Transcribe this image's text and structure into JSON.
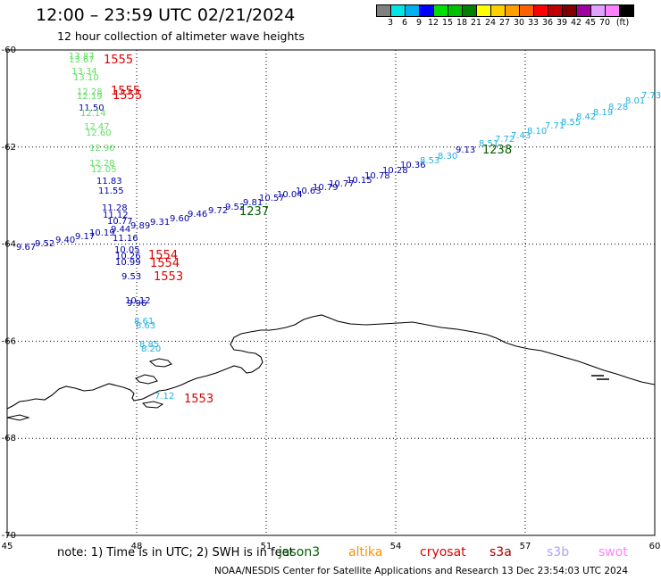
{
  "header": {
    "title": "12:00 – 23:59 UTC 02/21/2024",
    "subtitle": "12 hour collection of altimeter wave heights"
  },
  "legend": {
    "unit": "(ft)",
    "colors": [
      "#808080",
      "#00e6e6",
      "#00b0f0",
      "#0000ff",
      "#00e000",
      "#00c000",
      "#008000",
      "#ffff00",
      "#ffd000",
      "#ffa000",
      "#ff6000",
      "#ff0000",
      "#c00000",
      "#800000",
      "#a000a0",
      "#e0a0ff",
      "#ff80ff",
      "#000000"
    ],
    "labels": [
      "3",
      "6",
      "9",
      "12",
      "15",
      "18",
      "21",
      "24",
      "27",
      "30",
      "33",
      "36",
      "39",
      "42",
      "45",
      "70",
      "(ft)"
    ]
  },
  "map": {
    "x_ticks": [
      "45",
      "48",
      "51",
      "54",
      "57",
      "60"
    ],
    "y_ticks": [
      "-60",
      "-62",
      "-64",
      "-66",
      "-68",
      "-70"
    ],
    "tracks": [
      {
        "id": "track-1",
        "labels": [
          {
            "v": "13.87",
            "c": "#60e060"
          },
          {
            "v": "13.67",
            "c": "#60e060"
          },
          {
            "v": "13.34",
            "c": "#60e060"
          },
          {
            "v": "13.10",
            "c": "#60e060"
          },
          {
            "v": "12.28",
            "c": "#60e060"
          },
          {
            "v": "12.19",
            "c": "#60e060"
          },
          {
            "v": "11.50",
            "c": "#0000aa"
          },
          {
            "v": "12.14",
            "c": "#60e060"
          },
          {
            "v": "12.47",
            "c": "#60e060"
          },
          {
            "v": "12.60",
            "c": "#60e060"
          },
          {
            "v": "12.90",
            "c": "#60e060"
          },
          {
            "v": "12.28",
            "c": "#60e060"
          },
          {
            "v": "12.05",
            "c": "#60e060"
          },
          {
            "v": "11.83",
            "c": "#0000aa"
          },
          {
            "v": "11.55",
            "c": "#0000aa"
          },
          {
            "v": "11.28",
            "c": "#0000aa"
          },
          {
            "v": "11.12",
            "c": "#0000aa"
          },
          {
            "v": "10.77",
            "c": "#0000aa"
          },
          {
            "v": "9.44",
            "c": "#0000aa"
          },
          {
            "v": "11.16",
            "c": "#0000aa"
          },
          {
            "v": "10.05",
            "c": "#0000aa"
          },
          {
            "v": "10.26",
            "c": "#0000aa"
          },
          {
            "v": "10.99",
            "c": "#0000aa"
          },
          {
            "v": "9.53",
            "c": "#0000aa"
          },
          {
            "v": "10.12",
            "c": "#0000aa"
          },
          {
            "v": "9.96",
            "c": "#0000aa"
          },
          {
            "v": "8.61",
            "c": "#20b0e0"
          },
          {
            "v": "8.63",
            "c": "#20b0e0"
          },
          {
            "v": "8.85",
            "c": "#20b0e0"
          },
          {
            "v": "8.20",
            "c": "#20b0e0"
          },
          {
            "v": "7.12",
            "c": "#20b0e0"
          }
        ]
      },
      {
        "id": "track-2",
        "labels": [
          {
            "v": "9.67",
            "c": "#0000aa"
          },
          {
            "v": "9.52",
            "c": "#0000aa"
          },
          {
            "v": "9.40",
            "c": "#0000aa"
          },
          {
            "v": "9.17",
            "c": "#0000aa"
          },
          {
            "v": "10.19",
            "c": "#0000aa"
          },
          {
            "v": "9.89",
            "c": "#0000aa"
          },
          {
            "v": "9.31",
            "c": "#0000aa"
          },
          {
            "v": "9.60",
            "c": "#0000aa"
          },
          {
            "v": "9.46",
            "c": "#0000aa"
          },
          {
            "v": "9.72",
            "c": "#0000aa"
          },
          {
            "v": "9.52",
            "c": "#0000aa"
          },
          {
            "v": "9.81",
            "c": "#0000aa"
          },
          {
            "v": "10.57",
            "c": "#0000aa"
          },
          {
            "v": "10.04",
            "c": "#0000aa"
          },
          {
            "v": "10.63",
            "c": "#0000aa"
          },
          {
            "v": "10.79",
            "c": "#0000aa"
          },
          {
            "v": "10.77",
            "c": "#0000aa"
          },
          {
            "v": "10.15",
            "c": "#0000aa"
          },
          {
            "v": "10.78",
            "c": "#0000aa"
          },
          {
            "v": "10.28",
            "c": "#0000aa"
          },
          {
            "v": "10.36",
            "c": "#0000aa"
          },
          {
            "v": "8.53",
            "c": "#20b0e0"
          },
          {
            "v": "8.30",
            "c": "#20b0e0"
          },
          {
            "v": "9.13",
            "c": "#0000aa"
          },
          {
            "v": "8.51",
            "c": "#20b0e0"
          },
          {
            "v": "7.72",
            "c": "#20b0e0"
          },
          {
            "v": "7.43",
            "c": "#20b0e0"
          },
          {
            "v": "8.10",
            "c": "#20b0e0"
          },
          {
            "v": "7.71",
            "c": "#20b0e0"
          },
          {
            "v": "8.55",
            "c": "#20b0e0"
          },
          {
            "v": "8.42",
            "c": "#20b0e0"
          },
          {
            "v": "8.19",
            "c": "#20b0e0"
          },
          {
            "v": "8.28",
            "c": "#20b0e0"
          },
          {
            "v": "8.01",
            "c": "#20b0e0"
          },
          {
            "v": "7.73",
            "c": "#20b0e0"
          }
        ]
      }
    ],
    "time_labels": [
      {
        "v": "1555",
        "c": "#e00000"
      },
      {
        "v": "1555",
        "c": "#e00000"
      },
      {
        "v": "1555",
        "c": "#e00000"
      },
      {
        "v": "1554",
        "c": "#e00000"
      },
      {
        "v": "1554",
        "c": "#e00000"
      },
      {
        "v": "1553",
        "c": "#e00000"
      },
      {
        "v": "1553",
        "c": "#e00000"
      },
      {
        "v": "1237",
        "c": "#006000"
      },
      {
        "v": "1238",
        "c": "#006000"
      }
    ]
  },
  "footer": {
    "note": "note:  1) Time is in UTC; 2) SWH is in feet",
    "credit": "NOAA/NESDIS Center for Satellite Applications and Research     13 Dec 23:54:03 UTC 2024",
    "satellites": [
      {
        "name": "jason3",
        "color": "#006000"
      },
      {
        "name": "altika",
        "color": "#ff9000"
      },
      {
        "name": "cryosat",
        "color": "#e00000"
      },
      {
        "name": "s3a",
        "color": "#a00000"
      },
      {
        "name": "s3b",
        "color": "#b0a0ff"
      },
      {
        "name": "swot",
        "color": "#ff80ff"
      }
    ]
  }
}
